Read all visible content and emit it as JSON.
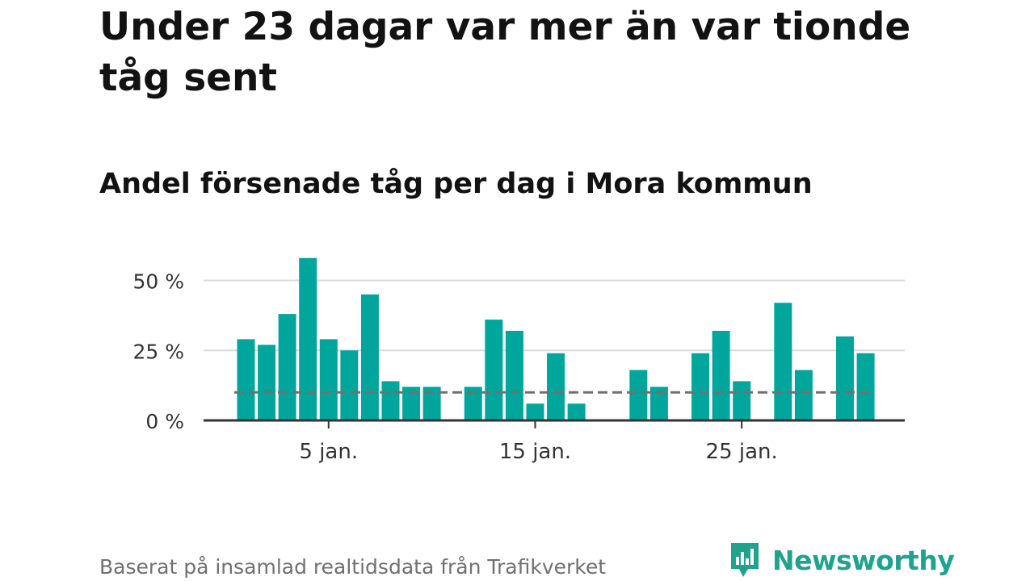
{
  "title": "Under 23 dagar var mer än var tionde tåg sent",
  "subtitle": "Andel försenade tåg per dag i Mora kommun",
  "source": "Baserat på insamlad realtidsdata från Trafikverket",
  "brand": {
    "name": "Newsworthy",
    "icon": "newsworthy-logo-icon",
    "color": "#1fa38d"
  },
  "colors": {
    "bar": "#00a69c",
    "reference": "#707070",
    "grid": "#d9d9d9",
    "axis": "#333333"
  },
  "chart_data": {
    "type": "bar",
    "x": [
      1,
      2,
      3,
      4,
      5,
      6,
      7,
      8,
      9,
      10,
      11,
      12,
      13,
      14,
      15,
      16,
      17,
      18,
      19,
      20,
      21,
      22,
      23,
      24,
      25,
      26,
      27,
      28,
      29,
      30,
      31
    ],
    "values": [
      29,
      27,
      38,
      58,
      29,
      25,
      45,
      14,
      12,
      12,
      null,
      12,
      36,
      32,
      6,
      24,
      6,
      null,
      null,
      18,
      12,
      null,
      24,
      32,
      14,
      null,
      42,
      18,
      null,
      30,
      24
    ],
    "value_unit": "%",
    "reference_line": {
      "value": 10,
      "style": "dashed"
    },
    "xticks": [
      {
        "x": 5,
        "label": "5 jan."
      },
      {
        "x": 15,
        "label": "15 jan."
      },
      {
        "x": 25,
        "label": "25 jan."
      }
    ],
    "yticks": [
      {
        "value": 0,
        "label": "0 %"
      },
      {
        "value": 25,
        "label": "25 %"
      },
      {
        "value": 50,
        "label": "50 %"
      }
    ],
    "grid": true,
    "legend": "none"
  }
}
